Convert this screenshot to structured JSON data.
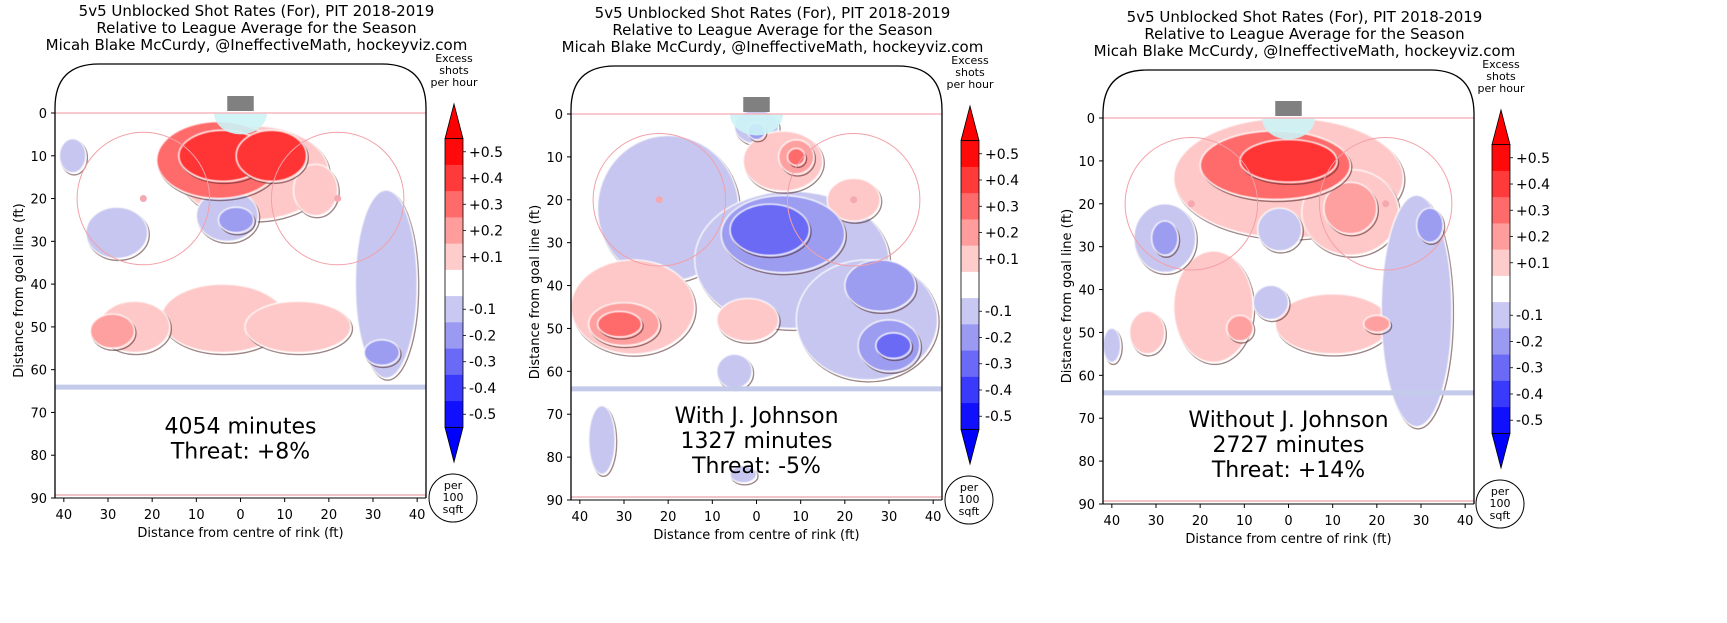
{
  "chart_data": [
    {
      "type": "heatmap",
      "title": [
        "5v5 Unblocked Shot Rates (For), PIT 2018-2019",
        "Relative to League Average for the Season",
        "Micah Blake McCurdy, @IneffectiveMath, hockeyviz.com"
      ],
      "xlabel": "Distance from centre of rink (ft)",
      "ylabel": "Distance from goal line (ft)",
      "xlim": [
        -42,
        42
      ],
      "ylim": [
        90,
        -12
      ],
      "xticks": [
        40,
        30,
        20,
        10,
        0,
        10,
        20,
        30,
        40
      ],
      "yticks": [
        0,
        10,
        20,
        30,
        40,
        50,
        60,
        70,
        80,
        90
      ],
      "annotation": [
        "4054 minutes",
        "Threat: +8%"
      ],
      "legend_title": [
        "Excess",
        "shots",
        "per hour"
      ],
      "legend_levels": [
        "+0.5",
        "+0.4",
        "+0.3",
        "+0.2",
        "+0.1",
        "-0.1",
        "-0.2",
        "-0.3",
        "-0.4",
        "-0.5"
      ],
      "unit_circle": [
        "per",
        "100",
        "sqft"
      ],
      "blobs": [
        {
          "x": -5,
          "y": 11,
          "rx": 14,
          "ry": 9,
          "level": 3
        },
        {
          "x": -4,
          "y": 10,
          "rx": 10,
          "ry": 6,
          "level": 4
        },
        {
          "x": 7,
          "y": 10,
          "rx": 8,
          "ry": 6,
          "level": 4
        },
        {
          "x": 3,
          "y": 14,
          "rx": 17,
          "ry": 11,
          "level": 1
        },
        {
          "x": 17,
          "y": 18,
          "rx": 5,
          "ry": 6,
          "level": 1
        },
        {
          "x": -4,
          "y": 48,
          "rx": 14,
          "ry": 8,
          "level": 1
        },
        {
          "x": 13,
          "y": 50,
          "rx": 12,
          "ry": 6,
          "level": 1
        },
        {
          "x": -29,
          "y": 51,
          "rx": 5,
          "ry": 4,
          "level": 2
        },
        {
          "x": -24,
          "y": 50,
          "rx": 8,
          "ry": 6,
          "level": 1
        },
        {
          "x": -38,
          "y": 10,
          "rx": 3,
          "ry": 4,
          "level": -1
        },
        {
          "x": -28,
          "y": 28,
          "rx": 7,
          "ry": 6,
          "level": -1
        },
        {
          "x": -3,
          "y": 24,
          "rx": 7,
          "ry": 6,
          "level": -1
        },
        {
          "x": -1,
          "y": 25,
          "rx": 4,
          "ry": 3,
          "level": -2
        },
        {
          "x": 33,
          "y": 40,
          "rx": 7,
          "ry": 22,
          "level": -1
        },
        {
          "x": 32,
          "y": 56,
          "rx": 4,
          "ry": 3,
          "level": -2
        }
      ]
    },
    {
      "type": "heatmap",
      "title": [
        "5v5 Unblocked Shot Rates (For), PIT 2018-2019",
        "Relative to League Average for the Season",
        "Micah Blake McCurdy, @IneffectiveMath, hockeyviz.com"
      ],
      "xlabel": "Distance from centre of rink (ft)",
      "ylabel": "Distance from goal line (ft)",
      "xlim": [
        -42,
        42
      ],
      "ylim": [
        90,
        -12
      ],
      "xticks": [
        40,
        30,
        20,
        10,
        0,
        10,
        20,
        30,
        40
      ],
      "yticks": [
        0,
        10,
        20,
        30,
        40,
        50,
        60,
        70,
        80,
        90
      ],
      "annotation": [
        "With J. Johnson",
        "1327 minutes",
        "Threat: -5%"
      ],
      "legend_title": [
        "Excess",
        "shots",
        "per hour"
      ],
      "legend_levels": [
        "+0.5",
        "+0.4",
        "+0.3",
        "+0.2",
        "+0.1",
        "-0.1",
        "-0.2",
        "-0.3",
        "-0.4",
        "-0.5"
      ],
      "unit_circle": [
        "per",
        "100",
        "sqft"
      ],
      "blobs": [
        {
          "x": -20,
          "y": 22,
          "rx": 16,
          "ry": 17,
          "level": -1
        },
        {
          "x": 8,
          "y": 34,
          "rx": 22,
          "ry": 16,
          "level": -1
        },
        {
          "x": 25,
          "y": 48,
          "rx": 16,
          "ry": 14,
          "level": -1
        },
        {
          "x": 0,
          "y": 3,
          "rx": 5,
          "ry": 4,
          "level": -1
        },
        {
          "x": 0,
          "y": 4,
          "rx": 2,
          "ry": 2,
          "level": -2
        },
        {
          "x": 6,
          "y": 28,
          "rx": 14,
          "ry": 9,
          "level": -2
        },
        {
          "x": 3,
          "y": 27,
          "rx": 9,
          "ry": 6,
          "level": -3
        },
        {
          "x": 28,
          "y": 40,
          "rx": 8,
          "ry": 6,
          "level": -2
        },
        {
          "x": 30,
          "y": 54,
          "rx": 7,
          "ry": 6,
          "level": -2
        },
        {
          "x": 31,
          "y": 54,
          "rx": 4,
          "ry": 3,
          "level": -3
        },
        {
          "x": -35,
          "y": 76,
          "rx": 3,
          "ry": 8,
          "level": -1
        },
        {
          "x": -3,
          "y": 84,
          "rx": 3,
          "ry": 2,
          "level": -1
        },
        {
          "x": -5,
          "y": 60,
          "rx": 4,
          "ry": 4,
          "level": -1
        },
        {
          "x": 6,
          "y": 11,
          "rx": 9,
          "ry": 7,
          "level": 1
        },
        {
          "x": 9,
          "y": 10,
          "rx": 4,
          "ry": 4,
          "level": 2
        },
        {
          "x": 9,
          "y": 10,
          "rx": 2,
          "ry": 2,
          "level": 3
        },
        {
          "x": -28,
          "y": 45,
          "rx": 14,
          "ry": 11,
          "level": 1
        },
        {
          "x": -30,
          "y": 49,
          "rx": 8,
          "ry": 5,
          "level": 2
        },
        {
          "x": -31,
          "y": 49,
          "rx": 5,
          "ry": 3,
          "level": 3
        },
        {
          "x": -2,
          "y": 48,
          "rx": 7,
          "ry": 5,
          "level": 1
        },
        {
          "x": 22,
          "y": 20,
          "rx": 6,
          "ry": 5,
          "level": 1
        }
      ]
    },
    {
      "type": "heatmap",
      "title": [
        "5v5 Unblocked Shot Rates (For), PIT 2018-2019",
        "Relative to League Average for the Season",
        "Micah Blake McCurdy, @IneffectiveMath, hockeyviz.com"
      ],
      "xlabel": "Distance from centre of rink (ft)",
      "ylabel": "Distance from goal line (ft)",
      "xlim": [
        -42,
        42
      ],
      "ylim": [
        90,
        -12
      ],
      "xticks": [
        40,
        30,
        20,
        10,
        0,
        10,
        20,
        30,
        40
      ],
      "yticks": [
        0,
        10,
        20,
        30,
        40,
        50,
        60,
        70,
        80,
        90
      ],
      "annotation": [
        "Without J. Johnson",
        "2727 minutes",
        "Threat: +14%"
      ],
      "legend_title": [
        "Excess",
        "shots",
        "per hour"
      ],
      "legend_levels": [
        "+0.5",
        "+0.4",
        "+0.3",
        "+0.2",
        "+0.1",
        "-0.1",
        "-0.2",
        "-0.3",
        "-0.4",
        "-0.5"
      ],
      "unit_circle": [
        "per",
        "100",
        "sqft"
      ],
      "blobs": [
        {
          "x": 0,
          "y": 14,
          "rx": 26,
          "ry": 14,
          "level": 1
        },
        {
          "x": -3,
          "y": 11,
          "rx": 17,
          "ry": 8,
          "level": 3
        },
        {
          "x": 0,
          "y": 10,
          "rx": 11,
          "ry": 5,
          "level": 4
        },
        {
          "x": 14,
          "y": 22,
          "rx": 11,
          "ry": 10,
          "level": 1
        },
        {
          "x": 14,
          "y": 21,
          "rx": 6,
          "ry": 6,
          "level": 2
        },
        {
          "x": -17,
          "y": 44,
          "rx": 9,
          "ry": 13,
          "level": 1
        },
        {
          "x": 10,
          "y": 48,
          "rx": 13,
          "ry": 7,
          "level": 1
        },
        {
          "x": 20,
          "y": 48,
          "rx": 3,
          "ry": 2,
          "level": 2
        },
        {
          "x": -11,
          "y": 49,
          "rx": 3,
          "ry": 3,
          "level": 2
        },
        {
          "x": -32,
          "y": 50,
          "rx": 4,
          "ry": 5,
          "level": 1
        },
        {
          "x": 29,
          "y": 45,
          "rx": 8,
          "ry": 27,
          "level": -1
        },
        {
          "x": 32,
          "y": 25,
          "rx": 3,
          "ry": 4,
          "level": -2
        },
        {
          "x": -28,
          "y": 28,
          "rx": 7,
          "ry": 8,
          "level": -1
        },
        {
          "x": -28,
          "y": 28,
          "rx": 3,
          "ry": 4,
          "level": -2
        },
        {
          "x": -2,
          "y": 26,
          "rx": 5,
          "ry": 5,
          "level": -1
        },
        {
          "x": -4,
          "y": 43,
          "rx": 4,
          "ry": 4,
          "level": -1
        },
        {
          "x": -40,
          "y": 53,
          "rx": 2,
          "ry": 4,
          "level": -1
        }
      ]
    }
  ]
}
